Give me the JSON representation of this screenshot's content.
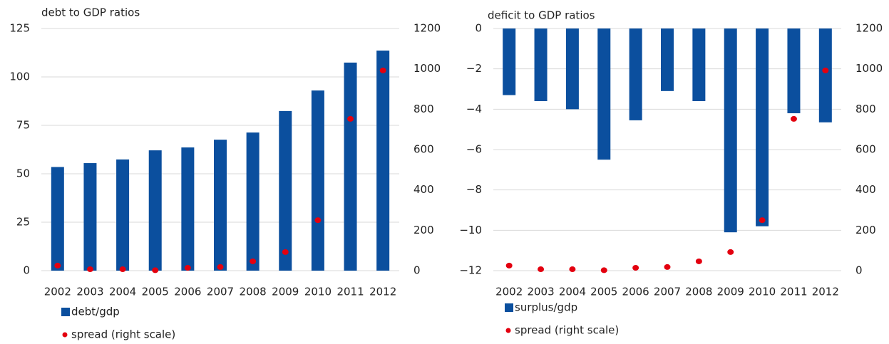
{
  "chart_data": [
    {
      "type": "bar",
      "title": "debt to GDP ratios",
      "categories": [
        "2002",
        "2003",
        "2004",
        "2005",
        "2006",
        "2007",
        "2008",
        "2009",
        "2010",
        "2011",
        "2012"
      ],
      "series": [
        {
          "name": "debt/gdp",
          "color": "#0b4f9e",
          "values": [
            53.5,
            55.5,
            57.4,
            62.1,
            63.6,
            67.6,
            71.3,
            82.4,
            93,
            107.4,
            113.6
          ]
        },
        {
          "name": "spread (right scale)",
          "color": "#e3000f",
          "type": "scatter",
          "axis": "y2",
          "values": [
            25,
            7,
            7,
            2,
            14,
            18,
            46,
            92,
            250,
            752,
            992
          ]
        }
      ],
      "ylim": [
        0,
        125
      ],
      "yticks": [
        0,
        25,
        50,
        75,
        100,
        125
      ],
      "y2lim": [
        0,
        1200
      ],
      "y2ticks": [
        0,
        200,
        400,
        600,
        800,
        1000,
        1200
      ],
      "grid": true,
      "legend": "bottom-left"
    },
    {
      "type": "bar",
      "title": "deficit to GDP ratios",
      "categories": [
        "2002",
        "2003",
        "2004",
        "2005",
        "2006",
        "2007",
        "2008",
        "2009",
        "2010",
        "2011",
        "2012"
      ],
      "series": [
        {
          "name": "surplus/gdp",
          "color": "#0b4f9e",
          "values": [
            -3.3,
            -3.6,
            -4.0,
            -6.5,
            -4.55,
            -3.1,
            -3.6,
            -10.1,
            -9.8,
            -4.2,
            -4.65
          ]
        },
        {
          "name": "spread (right scale)",
          "color": "#e3000f",
          "type": "scatter",
          "axis": "y2",
          "values": [
            25,
            7,
            7,
            2,
            14,
            18,
            46,
            92,
            250,
            752,
            992
          ]
        }
      ],
      "ylim": [
        -12,
        0
      ],
      "yticks": [
        {
          "value": -12,
          "label": "−12"
        },
        {
          "value": -10,
          "label": "−10"
        },
        {
          "value": -8,
          "label": "−8"
        },
        {
          "value": -6,
          "label": "−6"
        },
        {
          "value": -4,
          "label": "−4"
        },
        {
          "value": -2,
          "label": "−2"
        },
        0
      ],
      "y2lim": [
        0,
        1200
      ],
      "y2ticks": [
        0,
        200,
        400,
        600,
        800,
        1000,
        1200
      ],
      "grid": true,
      "legend": "bottom-left"
    }
  ]
}
